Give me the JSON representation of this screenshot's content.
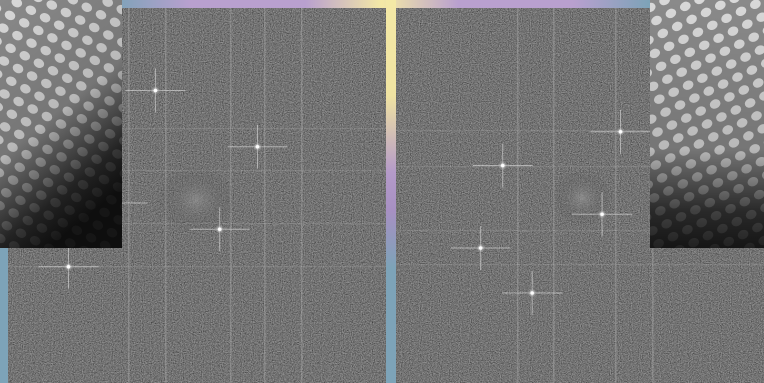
{
  "scene": {
    "panels": [
      {
        "name": "fft-panel-left",
        "spots": [
          [
            0.39,
            0.22
          ],
          [
            0.66,
            0.37
          ],
          [
            0.56,
            0.59
          ],
          [
            0.16,
            0.69
          ],
          [
            0.29,
            0.52
          ]
        ]
      },
      {
        "name": "fft-panel-right",
        "spots": [
          [
            0.29,
            0.42
          ],
          [
            0.61,
            0.33
          ],
          [
            0.37,
            0.76
          ],
          [
            0.56,
            0.55
          ],
          [
            0.23,
            0.64
          ]
        ]
      }
    ],
    "insets": [
      {
        "name": "lattice-inset-left",
        "lattice_angle_deg": 28
      },
      {
        "name": "lattice-inset-right",
        "lattice_angle_deg": -26
      }
    ]
  }
}
